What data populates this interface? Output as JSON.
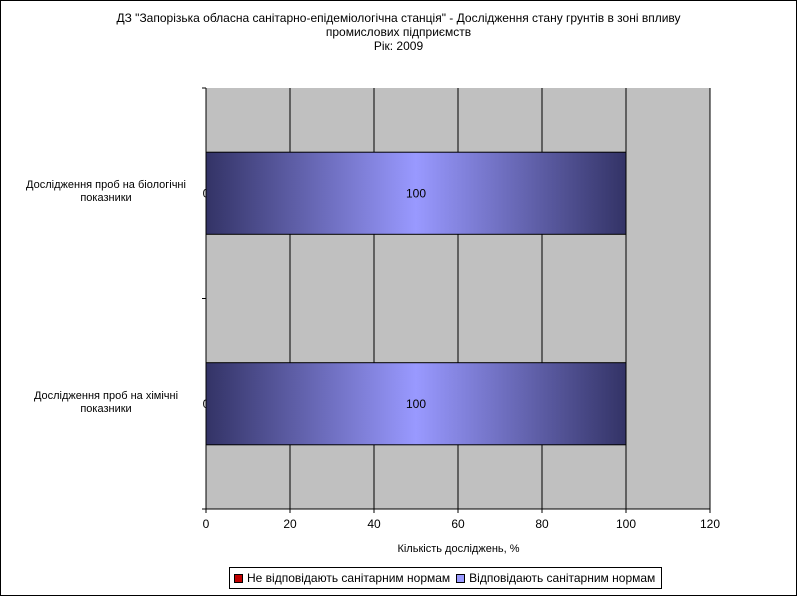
{
  "title": {
    "lines": [
      "ДЗ \"Запорізька обласна санітарно-епідеміологічна станція\" - Дослідження стану грунтів в зоні впливу",
      "промислових підприємств",
      "Рік: 2009"
    ]
  },
  "legend": {
    "items": [
      {
        "label": "Не відповідають санітарним нормам",
        "color": "#c00000"
      },
      {
        "label": "Відповідають санітарним нормам",
        "color": "#9999ff"
      }
    ]
  },
  "colors": {
    "plot_background": "#c0c0c0",
    "bar_edge": "#333366",
    "bar_center": "#9999ff",
    "not_compliant": "#c00000"
  },
  "chart_data": {
    "type": "bar",
    "orientation": "horizontal",
    "stacked": true,
    "categories": [
      "Дослідження проб на біологічні показники",
      "Дослідження проб на хімічні показники"
    ],
    "series": [
      {
        "name": "Не відповідають санітарним нормам",
        "values": [
          0,
          0
        ]
      },
      {
        "name": "Відповідають санітарним нормам",
        "values": [
          100,
          100
        ]
      }
    ],
    "data_labels": {
      "Не відповідають санітарним нормам": [
        "0",
        "0"
      ],
      "Відповідають санітарним нормам": [
        "100",
        "100"
      ]
    },
    "title": "ДЗ \"Запорізька обласна санітарно-епідеміологічна станція\" - Дослідження стану грунтів в зоні впливу промислових підприємств Рік: 2009",
    "xlabel": "Кількість досліджень, %",
    "ylabel": "",
    "xlim": [
      0,
      120
    ],
    "xticks": [
      "0",
      "20",
      "40",
      "60",
      "80",
      "100",
      "120"
    ],
    "grid": true,
    "legend_position": "bottom"
  }
}
